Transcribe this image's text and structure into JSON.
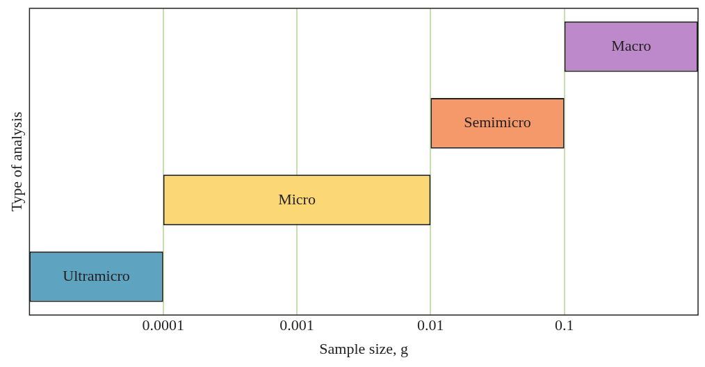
{
  "chart_data": {
    "type": "bar",
    "orientation": "horizontal",
    "xlabel": "Sample size, g",
    "ylabel": "Type of analysis",
    "categories": [
      "Macro",
      "Semimicro",
      "Micro",
      "Ultramicro"
    ],
    "base": [
      0.1,
      0.01,
      0.0001,
      1e-05
    ],
    "values": [
      0.9,
      0.09,
      0.0099,
      9e-05
    ],
    "colors": [
      "#bd89cb",
      "#f5996a",
      "#fbd776",
      "#5ea3c0"
    ],
    "log": "x",
    "xlim": [
      1e-05,
      1
    ],
    "xticks": [
      0.0001,
      0.001,
      0.01,
      0.1
    ],
    "grid": "x",
    "legend": false,
    "tick_labels": "x"
  }
}
